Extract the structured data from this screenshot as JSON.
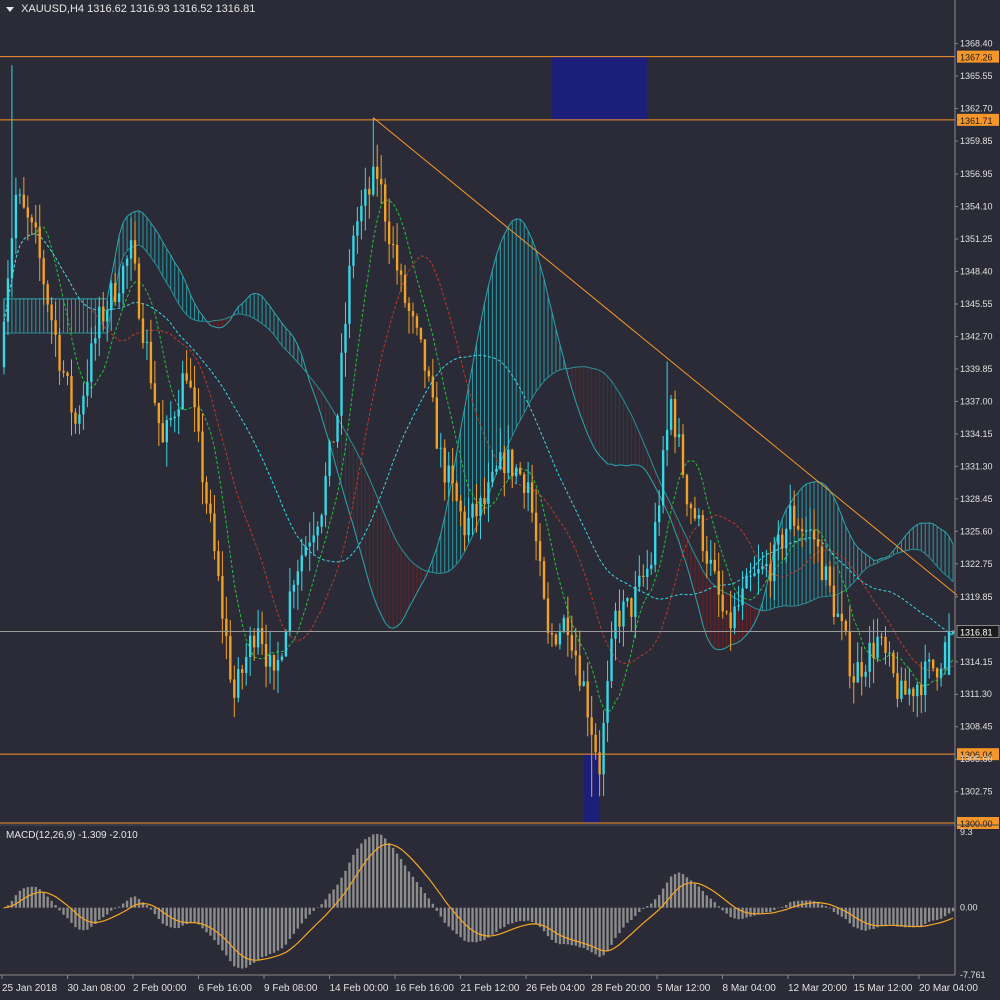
{
  "header": {
    "symbol": "XAUUSD,H4",
    "ohlc": "1316.62 1316.93 1316.52 1316.81"
  },
  "macd_header": {
    "label": "MACD(12,26,9) -1.309 -2.010"
  },
  "colors": {
    "background": "#2a2b36",
    "bull_candle": "#36d7e6",
    "bear_candle": "#f2a127",
    "level_line": "#f5962b",
    "zone_fill": "#1c1f7a",
    "cloud_bull": "#2aa6b0",
    "cloud_bear": "#7a1e22",
    "macd_hist": "#8c8c8c",
    "macd_signal": "#f5a623",
    "axis_text": "#e0e0e0"
  },
  "chart_data": [
    {
      "type": "candlestick",
      "title": "XAUUSD,H4",
      "ylim": [
        1300.0,
        1371.0
      ],
      "y_ticks": [
        "1368.40",
        "1365.55",
        "1362.70",
        "1359.85",
        "1356.95",
        "1354.10",
        "1351.25",
        "1348.40",
        "1345.55",
        "1342.70",
        "1339.85",
        "1337.00",
        "1334.15",
        "1331.30",
        "1328.45",
        "1325.60",
        "1322.75",
        "1319.85",
        "1314.15",
        "1311.30",
        "1308.45",
        "1305.60",
        "1302.75"
      ],
      "x_ticks": [
        "25 Jan 2018",
        "30 Jan 08:00",
        "2 Feb 00:00",
        "6 Feb 16:00",
        "9 Feb 08:00",
        "14 Feb 00:00",
        "16 Feb 16:00",
        "21 Feb 12:00",
        "26 Feb 04:00",
        "28 Feb 20:00",
        "5 Mar 12:00",
        "8 Mar 04:00",
        "12 Mar 20:00",
        "15 Mar 12:00",
        "20 Mar 04:00"
      ],
      "levels": [
        {
          "label": "1367.26",
          "value": 1367.26
        },
        {
          "label": "1361.71",
          "value": 1361.71
        },
        {
          "label": "1306.04",
          "value": 1306.04
        },
        {
          "label": "1300.00",
          "value": 1300.0
        }
      ],
      "current_price": {
        "label": "1316.81",
        "value": 1316.81
      },
      "zones": [
        {
          "x_from": 138,
          "x_to": 162,
          "y_from": 1361.71,
          "y_to": 1367.26
        },
        {
          "x_from": 146,
          "x_to": 150,
          "y_from": 1300.0,
          "y_to": 1306.04
        }
      ],
      "trendline": {
        "from": [
          93,
          1361.9
        ],
        "to": [
          240,
          1320.0
        ]
      },
      "indicators": [
        "ichimoku",
        "ma_fast",
        "ma_mid",
        "ma_slow"
      ]
    },
    {
      "type": "bar",
      "title": "MACD(12,26,9)",
      "ylim": [
        -7.761,
        9.3
      ],
      "y_ticks": [
        "9.3",
        "0.00",
        "-7.761"
      ],
      "main": -1.309,
      "signal": -2.01
    }
  ]
}
